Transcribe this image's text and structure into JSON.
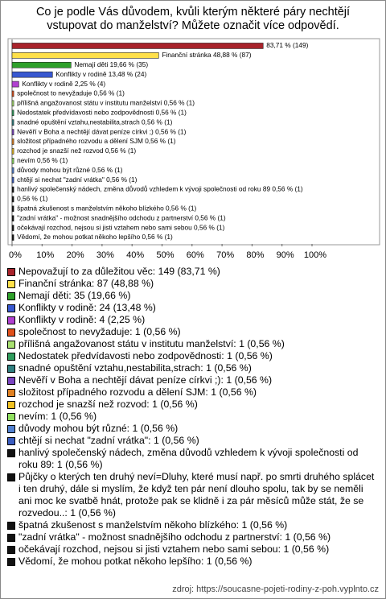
{
  "chart_data": {
    "type": "bar",
    "title": [
      "Co je podle Vás důvodem, kvůli kterým některé páry nechtějí",
      "vstupovat do manželství? Můžete označit více odpovědí."
    ],
    "values": [
      83.71,
      48.88,
      19.66,
      13.48,
      2.25,
      0.56,
      0.56,
      0.56,
      0.56,
      0.56,
      0.56,
      0.56,
      0.56,
      0.56,
      0.56,
      0.56,
      0.56,
      0.56,
      0.56,
      0.56,
      0.56
    ],
    "value_labels": [
      "83,71 % (149)",
      "Finanční stránka 48,88 % (87)",
      "Nemají děti 19,66 % (35)",
      "Konflikty v rodině 13,48 % (24)",
      "Konflikty v rodině 2,25 % (4)",
      "společnost to nevyžaduje 0,56 % (1)",
      "přílišná angažovanost státu v institutu manželství 0,56 % (1)",
      "Nedostatek předvídavosti nebo zodpovědnosti 0,56 % (1)",
      "snadné opuštění vztahu,nestabilita,strach 0,56 % (1)",
      "Nevěří v Boha a nechtějí dávat peníze církvi ;) 0,56 % (1)",
      "složitost případného rozvodu a dělení SJM 0,56 % (1)",
      "rozchod je snazší než rozvod 0,56 % (1)",
      "nevím 0,56 % (1)",
      "důvody mohou být různé 0,56 % (1)",
      "chtějí si nechat \"zadní vrátka\" 0,56 % (1)",
      "hanlivý společenský nádech, změna důvodů vzhledem k vývoji společnosti od roku 89 0,56 % (1)",
      "0,56 % (1)",
      "špatná zkušenost s manželstvím někoho blízkého 0,56 % (1)",
      "\"zadní vrátka\" - možnost snadnějšího odchodu z partnerství 0,56 % (1)",
      "očekávají rozchod, nejsou si jisti vztahem nebo sami sebou 0,56 % (1)",
      "Vědomí, že mohou potkat někoho lepšího 0,56 % (1)"
    ],
    "legend_labels": [
      "Nepovažují to za důležitou věc: 149 (83,71 %)",
      "Finanční stránka: 87 (48,88 %)",
      "Nemají děti: 35 (19,66 %)",
      "Konflikty v rodině: 24 (13,48 %)",
      "Konflikty v rodině: 4 (2,25 %)",
      "společnost to nevyžaduje: 1 (0,56 %)",
      "přílišná angažovanost státu v institutu manželství: 1 (0,56 %)",
      "Nedostatek předvídavosti nebo zodpovědnosti: 1 (0,56 %)",
      "snadné opuštění vztahu,nestabilita,strach: 1 (0,56 %)",
      "Nevěří v Boha a nechtějí dávat peníze církvi ;): 1 (0,56 %)",
      "složitost případného rozvodu a dělení SJM: 1 (0,56 %)",
      "rozchod je snazší než rozvod: 1 (0,56 %)",
      "nevím: 1 (0,56 %)",
      "důvody mohou být různé: 1 (0,56 %)",
      "chtějí si nechat \"zadní vrátka\": 1 (0,56 %)",
      "hanlivý společenský nádech, změna důvodů vzhledem k vývoji společnosti od roku 89: 1 (0,56 %)",
      "Půjčky o kterých ten druhý neví=Dluhy, které musí např. po smrti druhého splácet i ten druhý, dále si myslím, že když ten pár není dlouho spolu, tak by se neměli ani moc ke svatbě hnát, protože pak se klidně i za pár měsíců může stát, že se rozvedou..: 1 (0,56 %)",
      "špatná zkušenost s manželstvím někoho blízkého: 1 (0,56 %)",
      "\"zadní vrátka\" - možnost snadnějšího odchodu z partnerství: 1 (0,56 %)",
      "očekávají rozchod, nejsou si jisti vztahem nebo sami sebou: 1 (0,56 %)",
      "Vědomí, že mohou potkat někoho lepšího: 1 (0,56 %)"
    ],
    "colors": [
      "#a8232b",
      "#ffe04a",
      "#2ea02a",
      "#3858d0",
      "#b040d0",
      "#e0501a",
      "#a8e070",
      "#2f9c5c",
      "#2f7f80",
      "#7a44c0",
      "#e08020",
      "#f0c020",
      "#90e060",
      "#5080d0",
      "#3a5cc0",
      "#111111",
      "#111111",
      "#111111",
      "#111111",
      "#111111",
      "#111111"
    ],
    "xlim": [
      0,
      100
    ],
    "xticks": [
      {
        "value": 0,
        "label": "0%"
      },
      {
        "value": 10,
        "label": "10%"
      },
      {
        "value": 20,
        "label": "20%"
      },
      {
        "value": 30,
        "label": "30%"
      },
      {
        "value": 40,
        "label": "40%"
      },
      {
        "value": 50,
        "label": "50%"
      },
      {
        "value": 60,
        "label": "60%"
      },
      {
        "value": 70,
        "label": "70%"
      },
      {
        "value": 80,
        "label": "80%"
      },
      {
        "value": 90,
        "label": "90%"
      },
      {
        "value": 100,
        "label": "100%"
      }
    ],
    "source": "zdroj: https://soucasne-pojeti-rodiny-z-poh.vyplnto.cz"
  }
}
